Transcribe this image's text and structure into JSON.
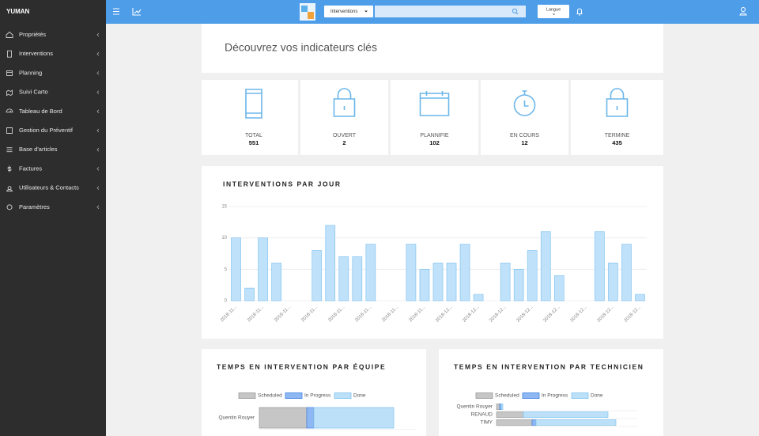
{
  "sidebar": {
    "brand": "YUMAN",
    "menu": [
      "Propriétés",
      "Interventions",
      "Planning",
      "Suivi Carto",
      "Tableau de Bord",
      "Gestion du Préventif",
      "Base d'articles",
      "Factures",
      "Utilisateurs & Contacts",
      "Paramètres"
    ]
  },
  "header": {
    "search_scope": "Interventions",
    "language": "Langue"
  },
  "intro": "Découvrez vos indicateurs clés",
  "kpis": [
    {
      "label": "TOTAL",
      "value": 551
    },
    {
      "label": "OUVERT",
      "value": 2
    },
    {
      "label": "PLANNIFIE",
      "value": 102
    },
    {
      "label": "EN COURS",
      "value": 12
    },
    {
      "label": "TERMINE",
      "value": 435
    }
  ],
  "chart_data": [
    {
      "type": "bar",
      "title": "INTERVENTIONS PAR JOUR",
      "categories": [
        "2018-11...",
        null,
        "2018-11...",
        null,
        "2018-11...",
        null,
        "2018-11...",
        null,
        "2018-11...",
        null,
        "2018-11...",
        null,
        "2018-11...",
        null,
        "2018-11...",
        null,
        "2018-12...",
        null,
        "2018-12...",
        null,
        "2018-12...",
        null,
        "2018-12...",
        null,
        "2018-12...",
        null,
        "2018-12...",
        null,
        "2018-12...",
        null,
        "2018-12..."
      ],
      "values": [
        10,
        2,
        10,
        6,
        0,
        0,
        8,
        12,
        7,
        7,
        9,
        0,
        0,
        9,
        5,
        6,
        6,
        9,
        1,
        0,
        6,
        5,
        8,
        11,
        4,
        0,
        0,
        11,
        6,
        9,
        1
      ],
      "color": "#bfe1fa",
      "border_color": "#86c5f0",
      "ylim": [
        0,
        15
      ],
      "yticks": [
        0,
        5,
        10,
        15
      ],
      "grid": true
    },
    {
      "type": "hbar_stacked",
      "title": "TEMPS EN INTERVENTION PAR ÉQUIPE",
      "categories": [
        "Quentin Rouyer"
      ],
      "series": [
        {
          "name": "Scheduled",
          "color": "#c6c6c6",
          "values": [
            60
          ]
        },
        {
          "name": "In Progress",
          "color": "#8fb8f2",
          "values": [
            9
          ]
        },
        {
          "name": "Done",
          "color": "#bde0f9",
          "values": [
            101
          ]
        }
      ]
    },
    {
      "type": "hbar_stacked",
      "title": "TEMPS EN INTERVENTION PAR TECHNICIEN",
      "categories": [
        "Quentin Rouyer",
        "RENAUD",
        "TIMY"
      ],
      "series": [
        {
          "name": "Scheduled",
          "color": "#c6c6c6",
          "values": [
            4,
            34,
            45
          ]
        },
        {
          "name": "In Progress",
          "color": "#8fb8f2",
          "values": [
            2,
            0,
            5
          ]
        },
        {
          "name": "Done",
          "color": "#bde0f9",
          "values": [
            2,
            107,
            101
          ]
        }
      ]
    }
  ]
}
